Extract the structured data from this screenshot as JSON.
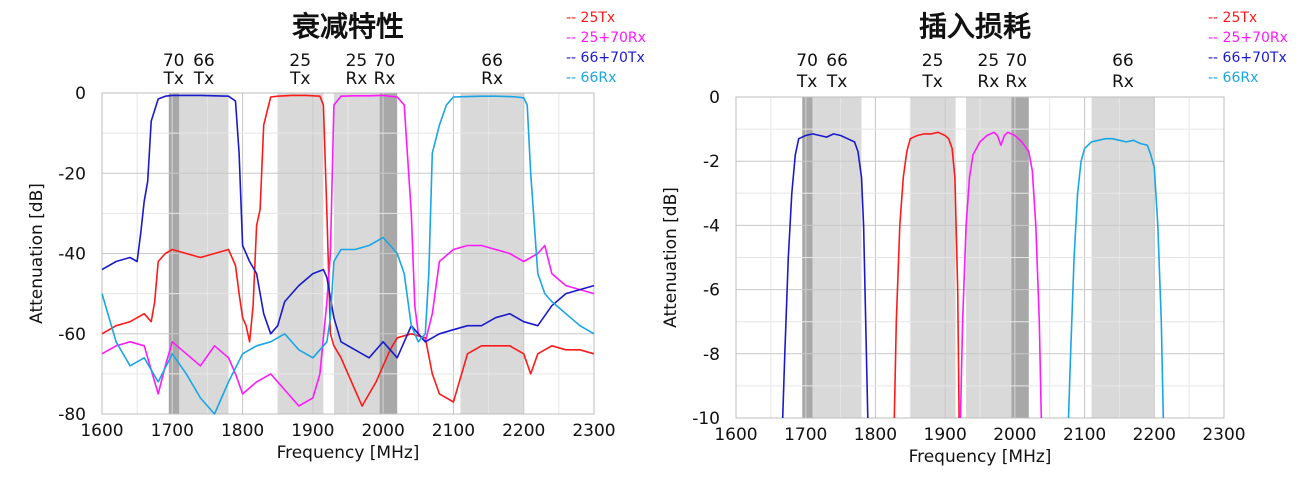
{
  "legend": [
    {
      "label": "-- 25Tx",
      "color": "#ff1a1a"
    },
    {
      "label": "-- 25+70Rx",
      "color": "#ff1aff"
    },
    {
      "label": "-- 66+70Tx",
      "color": "#1a1acc"
    },
    {
      "label": "-- 66Rx",
      "color": "#1aa6e6"
    }
  ],
  "band_labels": [
    {
      "top": "70",
      "bottom": "Tx",
      "freq": 1702
    },
    {
      "top": "66",
      "bottom": "Tx",
      "freq": 1745
    },
    {
      "top": "25",
      "bottom": "Tx",
      "freq": 1882
    },
    {
      "top": "25",
      "bottom": "Rx",
      "freq": 1962
    },
    {
      "top": "70",
      "bottom": "Rx",
      "freq": 2002
    },
    {
      "top": "66",
      "bottom": "Rx",
      "freq": 2155
    }
  ],
  "chart_data": [
    {
      "type": "line",
      "title": "衰减特性",
      "xlabel": "Frequency [MHz]",
      "ylabel": "Attenuation [dB]",
      "xlim": [
        1600,
        2300
      ],
      "ylim": [
        -80,
        0
      ],
      "xticks": [
        1600,
        1700,
        1800,
        1900,
        2000,
        2100,
        2200,
        2300
      ],
      "yticks": [
        0,
        -20,
        -40,
        -60,
        -80
      ],
      "bands": [
        {
          "name": "70Tx",
          "range": [
            1695,
            1710
          ],
          "shade": "dark"
        },
        {
          "name": "66Tx",
          "range": [
            1710,
            1780
          ],
          "shade": "light"
        },
        {
          "name": "25Tx",
          "range": [
            1850,
            1915
          ],
          "shade": "light"
        },
        {
          "name": "25Rx",
          "range": [
            1930,
            1995
          ],
          "shade": "light"
        },
        {
          "name": "70Rx",
          "range": [
            1995,
            2020
          ],
          "shade": "dark"
        },
        {
          "name": "66Rx",
          "range": [
            2110,
            2200
          ],
          "shade": "light"
        }
      ],
      "series": [
        {
          "name": "25Tx",
          "color": "#ff1a1a",
          "x": [
            1600,
            1620,
            1640,
            1660,
            1670,
            1675,
            1680,
            1690,
            1700,
            1720,
            1740,
            1760,
            1780,
            1790,
            1795,
            1800,
            1805,
            1810,
            1815,
            1820,
            1825,
            1830,
            1840,
            1850,
            1870,
            1890,
            1910,
            1915,
            1920,
            1925,
            1930,
            1940,
            1950,
            1960,
            1970,
            1980,
            1990,
            2000,
            2010,
            2020,
            2040,
            2060,
            2070,
            2080,
            2090,
            2100,
            2120,
            2140,
            2160,
            2180,
            2200,
            2210,
            2220,
            2240,
            2260,
            2280,
            2300
          ],
          "y": [
            -60,
            -58,
            -57,
            -55,
            -57,
            -52,
            -42,
            -40,
            -39,
            -40,
            -41,
            -40,
            -39,
            -43,
            -50,
            -56,
            -58,
            -62,
            -53,
            -33,
            -29,
            -8,
            -1,
            -0.8,
            -0.6,
            -0.6,
            -0.8,
            -3,
            -30,
            -60,
            -63,
            -66,
            -70,
            -74,
            -78,
            -75,
            -72,
            -68,
            -64,
            -61,
            -60,
            -61,
            -70,
            -75,
            -76,
            -77,
            -65,
            -63,
            -63,
            -63,
            -65,
            -70,
            -65,
            -63,
            -64,
            -64,
            -65
          ]
        },
        {
          "name": "25+70Rx",
          "color": "#ff1aff",
          "x": [
            1600,
            1620,
            1640,
            1660,
            1680,
            1690,
            1700,
            1720,
            1740,
            1760,
            1780,
            1790,
            1800,
            1820,
            1840,
            1860,
            1880,
            1900,
            1910,
            1920,
            1925,
            1930,
            1940,
            1960,
            1980,
            2000,
            2020,
            2030,
            2040,
            2045,
            2050,
            2060,
            2070,
            2080,
            2100,
            2120,
            2140,
            2160,
            2180,
            2200,
            2220,
            2230,
            2240,
            2260,
            2280,
            2300
          ],
          "y": [
            -65,
            -63,
            -62,
            -63,
            -75,
            -68,
            -62,
            -65,
            -68,
            -63,
            -66,
            -70,
            -75,
            -72,
            -70,
            -74,
            -78,
            -76,
            -70,
            -52,
            -40,
            -3,
            -0.8,
            -0.7,
            -0.7,
            -0.6,
            -1,
            -3,
            -30,
            -53,
            -60,
            -62,
            -55,
            -42,
            -39,
            -38,
            -38,
            -39,
            -40,
            -42,
            -40,
            -38,
            -45,
            -48,
            -49,
            -50
          ]
        },
        {
          "name": "66+70Tx",
          "color": "#1a1acc",
          "x": [
            1600,
            1620,
            1640,
            1650,
            1655,
            1660,
            1665,
            1670,
            1680,
            1690,
            1700,
            1720,
            1740,
            1760,
            1780,
            1790,
            1795,
            1800,
            1810,
            1820,
            1830,
            1840,
            1850,
            1860,
            1880,
            1900,
            1915,
            1920,
            1930,
            1940,
            1960,
            1980,
            2000,
            2020,
            2040,
            2060,
            2080,
            2100,
            2120,
            2140,
            2160,
            2180,
            2200,
            2220,
            2240,
            2260,
            2280,
            2300
          ],
          "y": [
            -44,
            -42,
            -41,
            -42,
            -35,
            -27,
            -22,
            -7,
            -1.5,
            -0.8,
            -0.6,
            -0.6,
            -0.6,
            -0.7,
            -0.8,
            -2,
            -15,
            -38,
            -42,
            -45,
            -55,
            -60,
            -58,
            -52,
            -48,
            -45,
            -44,
            -46,
            -56,
            -62,
            -64,
            -66,
            -62,
            -66,
            -58,
            -62,
            -60,
            -59,
            -58,
            -58,
            -56,
            -55,
            -57,
            -58,
            -53,
            -50,
            -49,
            -48
          ]
        },
        {
          "name": "66Rx",
          "color": "#1aa6e6",
          "x": [
            1600,
            1620,
            1640,
            1660,
            1680,
            1700,
            1720,
            1740,
            1760,
            1780,
            1800,
            1820,
            1840,
            1860,
            1880,
            1900,
            1920,
            1925,
            1930,
            1940,
            1960,
            1980,
            2000,
            2010,
            2020,
            2030,
            2040,
            2050,
            2060,
            2065,
            2070,
            2080,
            2090,
            2100,
            2120,
            2140,
            2160,
            2180,
            2190,
            2200,
            2205,
            2210,
            2220,
            2230,
            2240,
            2260,
            2280,
            2300
          ],
          "y": [
            -50,
            -62,
            -68,
            -66,
            -72,
            -65,
            -70,
            -76,
            -80,
            -72,
            -65,
            -63,
            -62,
            -60,
            -64,
            -66,
            -62,
            -56,
            -42,
            -39,
            -39,
            -38,
            -36,
            -38,
            -40,
            -45,
            -58,
            -62,
            -60,
            -45,
            -15,
            -8,
            -3,
            -1,
            -0.9,
            -0.8,
            -0.8,
            -0.9,
            -1,
            -1.2,
            -3,
            -20,
            -45,
            -50,
            -52,
            -55,
            -58,
            -60
          ]
        }
      ]
    },
    {
      "type": "line",
      "title": "插入损耗",
      "xlabel": "Frequency [MHz]",
      "ylabel": "Attenuation [dB]",
      "xlim": [
        1600,
        2300
      ],
      "ylim": [
        -10,
        0
      ],
      "xticks": [
        1600,
        1700,
        1800,
        1900,
        2000,
        2100,
        2200,
        2300
      ],
      "yticks": [
        0,
        -2,
        -4,
        -6,
        -8,
        -10
      ],
      "bands": [
        {
          "name": "70Tx",
          "range": [
            1695,
            1710
          ],
          "shade": "dark"
        },
        {
          "name": "66Tx",
          "range": [
            1710,
            1780
          ],
          "shade": "light"
        },
        {
          "name": "25Tx",
          "range": [
            1850,
            1915
          ],
          "shade": "light"
        },
        {
          "name": "25Rx",
          "range": [
            1930,
            1995
          ],
          "shade": "light"
        },
        {
          "name": "70Rx",
          "range": [
            1995,
            2020
          ],
          "shade": "dark"
        },
        {
          "name": "66Rx",
          "range": [
            2110,
            2200
          ],
          "shade": "light"
        }
      ],
      "series": [
        {
          "name": "25Tx",
          "color": "#ff1a1a",
          "x": [
            1827,
            1830,
            1835,
            1840,
            1845,
            1850,
            1860,
            1870,
            1880,
            1890,
            1900,
            1905,
            1910,
            1914,
            1918,
            1920
          ],
          "y": [
            -10,
            -7,
            -4,
            -2.5,
            -1.7,
            -1.3,
            -1.2,
            -1.15,
            -1.15,
            -1.1,
            -1.2,
            -1.3,
            -1.6,
            -2.5,
            -6,
            -10
          ]
        },
        {
          "name": "25+70Rx",
          "color": "#ff1aff",
          "x": [
            1922,
            1925,
            1930,
            1935,
            1940,
            1950,
            1960,
            1970,
            1975,
            1980,
            1985,
            1990,
            2000,
            2010,
            2020,
            2025,
            2030,
            2035,
            2038
          ],
          "y": [
            -10,
            -7,
            -4,
            -2.5,
            -1.8,
            -1.4,
            -1.2,
            -1.1,
            -1.2,
            -1.5,
            -1.2,
            -1.1,
            -1.2,
            -1.4,
            -1.7,
            -2.3,
            -4,
            -7,
            -10
          ]
        },
        {
          "name": "66+70Tx",
          "color": "#1a1acc",
          "x": [
            1667,
            1670,
            1675,
            1680,
            1685,
            1690,
            1700,
            1710,
            1720,
            1730,
            1740,
            1750,
            1760,
            1770,
            1775,
            1780,
            1783,
            1786,
            1789
          ],
          "y": [
            -10,
            -8,
            -5,
            -3,
            -1.8,
            -1.3,
            -1.2,
            -1.15,
            -1.2,
            -1.25,
            -1.15,
            -1.2,
            -1.3,
            -1.4,
            -1.7,
            -2.5,
            -4,
            -7,
            -10
          ]
        },
        {
          "name": "66Rx",
          "color": "#1aa6e6",
          "x": [
            2077,
            2080,
            2085,
            2090,
            2095,
            2100,
            2110,
            2120,
            2130,
            2140,
            2150,
            2160,
            2170,
            2180,
            2190,
            2195,
            2200,
            2205,
            2210,
            2213
          ],
          "y": [
            -10,
            -8,
            -5,
            -3,
            -2,
            -1.6,
            -1.4,
            -1.35,
            -1.3,
            -1.3,
            -1.35,
            -1.4,
            -1.35,
            -1.45,
            -1.5,
            -1.8,
            -2.2,
            -4,
            -7,
            -10
          ]
        }
      ]
    }
  ]
}
